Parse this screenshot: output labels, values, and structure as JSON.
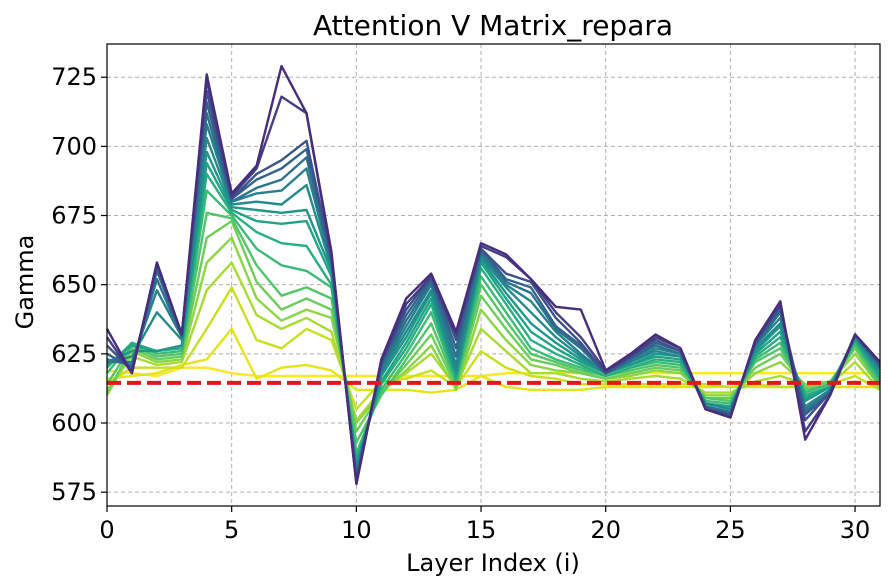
{
  "chart_data": {
    "type": "line",
    "title": "Attention V Matrix_repara",
    "xlabel": "Layer Index (i)",
    "ylabel": "Gamma",
    "xlim": [
      0,
      31
    ],
    "ylim": [
      570,
      737
    ],
    "x_ticks": [
      0,
      5,
      10,
      15,
      20,
      25,
      30
    ],
    "y_ticks": [
      575,
      600,
      625,
      650,
      675,
      700,
      725
    ],
    "grid": true,
    "legend": "none",
    "x": [
      0,
      1,
      2,
      3,
      4,
      5,
      6,
      7,
      8,
      9,
      10,
      11,
      12,
      13,
      14,
      15,
      16,
      17,
      18,
      19,
      20,
      21,
      22,
      23,
      24,
      25,
      26,
      27,
      28,
      29,
      30,
      31
    ],
    "colormap": "viridis (dark purple to yellow)",
    "reference_line": {
      "y": 614.5,
      "color": "#e8141a",
      "style": "dashed"
    },
    "series": [
      {
        "color": "#fde725",
        "values": [
          619,
          618,
          617,
          620,
          620,
          618,
          617,
          617,
          617,
          617,
          617,
          617,
          617,
          617,
          617,
          617,
          618,
          618,
          618,
          618,
          618,
          618,
          618,
          618,
          618,
          618,
          618,
          618,
          618,
          618,
          618,
          618
        ]
      },
      {
        "color": "#e4e419",
        "values": [
          616,
          617,
          618,
          621,
          623,
          634,
          616,
          620,
          621,
          619,
          612,
          612,
          612,
          611,
          612,
          617,
          613,
          612,
          612,
          612,
          613,
          613,
          613,
          613,
          613,
          613,
          613,
          613,
          613,
          613,
          613,
          613
        ]
      },
      {
        "color": "#c7e020",
        "values": [
          614,
          620,
          620,
          620,
          634,
          649,
          630,
          627,
          634,
          630,
          605,
          615,
          616,
          619,
          613,
          626,
          620,
          617,
          616,
          614,
          614,
          614,
          614,
          614,
          614,
          613,
          614,
          613,
          613,
          614,
          617,
          612
        ]
      },
      {
        "color": "#a8db34",
        "values": [
          612,
          624,
          621,
          622,
          648,
          658,
          639,
          634,
          638,
          633,
          601,
          612,
          618,
          625,
          613,
          634,
          626,
          618,
          618,
          616,
          615,
          616,
          617,
          616,
          611,
          611,
          615,
          617,
          614,
          614,
          622,
          612
        ]
      },
      {
        "color": "#8bd646",
        "values": [
          610,
          626,
          622,
          623,
          658,
          667,
          645,
          637,
          641,
          638,
          600,
          611,
          619,
          628,
          612,
          641,
          630,
          621,
          619,
          618,
          616,
          617,
          619,
          618,
          610,
          610,
          618,
          622,
          614,
          615,
          625,
          613
        ]
      },
      {
        "color": "#6ccd5a",
        "values": [
          611,
          627,
          623,
          624,
          667,
          673,
          651,
          641,
          645,
          641,
          597,
          611,
          621,
          632,
          613,
          646,
          634,
          623,
          621,
          618,
          616,
          618,
          620,
          619,
          609,
          609,
          620,
          625,
          613,
          615,
          627,
          613
        ]
      },
      {
        "color": "#52c569",
        "values": [
          614,
          628,
          624,
          625,
          676,
          674,
          657,
          646,
          649,
          645,
          593,
          610,
          623,
          636,
          614,
          650,
          637,
          625,
          622,
          619,
          617,
          619,
          621,
          620,
          609,
          608,
          622,
          627,
          612,
          614,
          628,
          614
        ]
      },
      {
        "color": "#3bbb75",
        "values": [
          618,
          629,
          625,
          626,
          684,
          675,
          663,
          657,
          655,
          649,
          589,
          612,
          625,
          640,
          615,
          653,
          640,
          627,
          623,
          620,
          617,
          620,
          622,
          621,
          608,
          607,
          623,
          629,
          611,
          614,
          629,
          615
        ]
      },
      {
        "color": "#29af7f",
        "values": [
          620,
          629,
          626,
          627,
          690,
          676,
          669,
          665,
          664,
          650,
          587,
          614,
          627,
          643,
          616,
          656,
          643,
          630,
          625,
          621,
          617,
          620,
          623,
          622,
          607,
          606,
          624,
          631,
          610,
          613,
          630,
          616
        ]
      },
      {
        "color": "#20a386",
        "values": [
          621,
          628,
          626,
          628,
          694,
          677,
          673,
          672,
          673,
          653,
          585,
          615,
          629,
          645,
          617,
          658,
          645,
          633,
          627,
          622,
          618,
          621,
          624,
          623,
          607,
          606,
          625,
          633,
          609,
          613,
          630,
          617
        ]
      },
      {
        "color": "#1f978b",
        "values": [
          622,
          626,
          626,
          628,
          698,
          678,
          677,
          676,
          677,
          655,
          584,
          617,
          631,
          647,
          618,
          659,
          647,
          636,
          629,
          623,
          618,
          621,
          625,
          624,
          607,
          605,
          626,
          635,
          608,
          613,
          631,
          618
        ]
      },
      {
        "color": "#228c8d",
        "values": [
          622,
          624,
          640,
          630,
          703,
          679,
          680,
          679,
          686,
          656,
          583,
          618,
          633,
          648,
          619,
          660,
          649,
          640,
          631,
          624,
          618,
          622,
          626,
          624,
          607,
          605,
          627,
          636,
          606,
          612,
          631,
          619
        ]
      },
      {
        "color": "#26818e",
        "values": [
          622,
          622,
          648,
          631,
          708,
          680,
          683,
          684,
          692,
          657,
          582,
          619,
          635,
          650,
          621,
          661,
          650,
          644,
          633,
          625,
          618,
          622,
          627,
          625,
          606,
          604,
          628,
          638,
          605,
          612,
          631,
          620
        ]
      },
      {
        "color": "#2c728e",
        "values": [
          623,
          621,
          652,
          631,
          712,
          680,
          685,
          688,
          696,
          658,
          581,
          620,
          637,
          651,
          624,
          662,
          651,
          647,
          634,
          627,
          618,
          623,
          628,
          625,
          606,
          604,
          628,
          640,
          604,
          611,
          632,
          620
        ]
      },
      {
        "color": "#33638d",
        "values": [
          625,
          620,
          655,
          632,
          716,
          681,
          688,
          692,
          699,
          659,
          580,
          621,
          639,
          652,
          627,
          663,
          652,
          649,
          635,
          628,
          618,
          623,
          629,
          626,
          606,
          603,
          629,
          641,
          603,
          611,
          632,
          621
        ]
      },
      {
        "color": "#3b528b",
        "values": [
          628,
          619,
          657,
          632,
          720,
          681,
          690,
          695,
          702,
          660,
          579,
          622,
          641,
          653,
          630,
          663,
          654,
          651,
          638,
          629,
          618,
          624,
          630,
          626,
          605,
          603,
          629,
          642,
          601,
          611,
          632,
          621
        ]
      },
      {
        "color": "#433e85",
        "values": [
          631,
          618,
          658,
          632,
          724,
          682,
          692,
          718,
          712,
          661,
          578,
          622,
          643,
          653,
          632,
          664,
          660,
          652,
          640,
          631,
          619,
          624,
          631,
          627,
          605,
          602,
          630,
          643,
          597,
          610,
          632,
          622
        ]
      },
      {
        "color": "#472d7b",
        "values": [
          634,
          618,
          658,
          632,
          726,
          683,
          693,
          729,
          712,
          662,
          578,
          623,
          645,
          654,
          633,
          665,
          661,
          652,
          642,
          641,
          619,
          625,
          632,
          627,
          605,
          602,
          630,
          644,
          594,
          610,
          632,
          622
        ]
      }
    ]
  }
}
